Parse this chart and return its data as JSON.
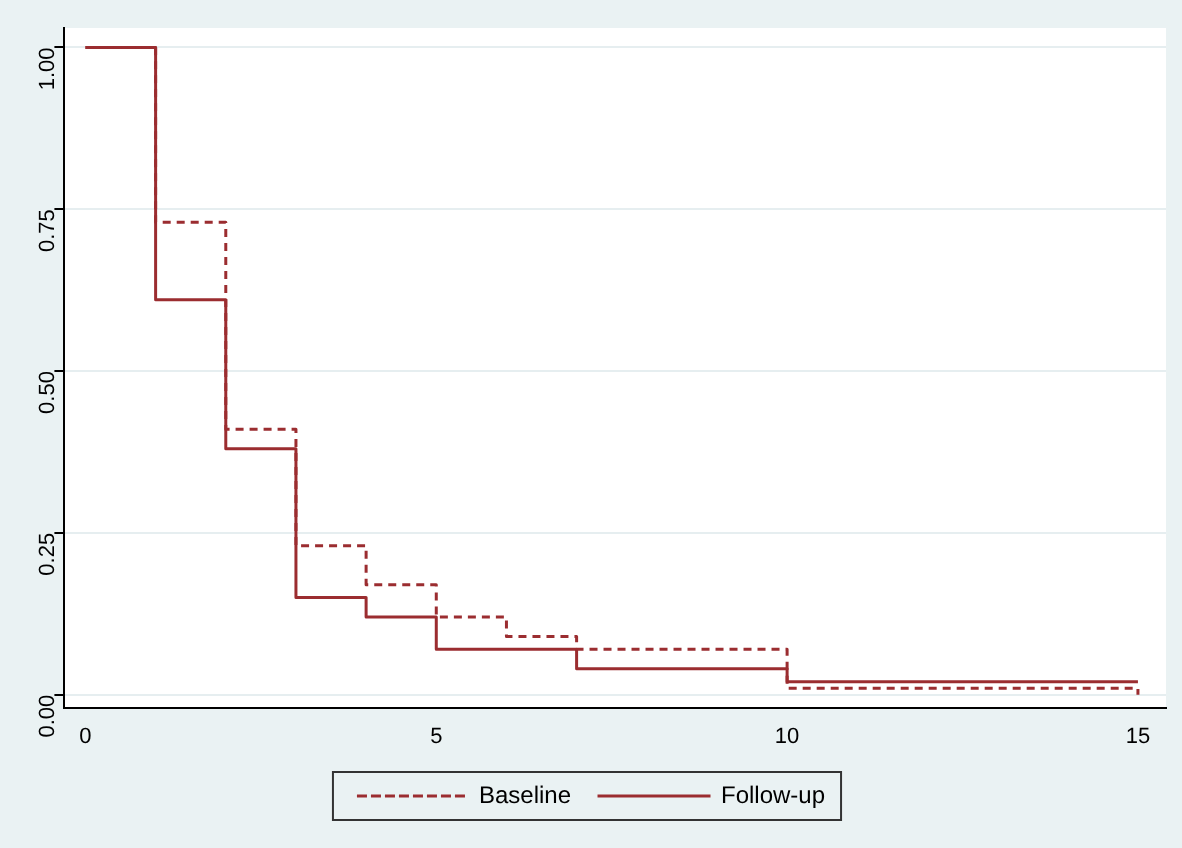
{
  "chart_data": {
    "type": "step",
    "xlim": [
      -0.3,
      15.4
    ],
    "xticks": [
      0,
      5,
      10,
      15
    ],
    "ylim": [
      -0.02,
      1.03
    ],
    "yticks": [
      {
        "value": 0,
        "label": "0.00"
      },
      {
        "value": 0.25,
        "label": "0.25"
      },
      {
        "value": 0.5,
        "label": "0.50"
      },
      {
        "value": 0.75,
        "label": "0.75"
      },
      {
        "value": 1,
        "label": "1.00"
      }
    ],
    "grid": "y",
    "legend": "bottom",
    "marker": "none",
    "series": [
      {
        "name": "Baseline",
        "color": "#9b2d30",
        "line_style": "dashed",
        "x": [
          0,
          1,
          2,
          3,
          4,
          5,
          6,
          7,
          10,
          15
        ],
        "values": [
          1,
          0.73,
          0.41,
          0.23,
          0.17,
          0.12,
          0.09,
          0.07,
          0.01,
          0
        ]
      },
      {
        "name": "Follow-up",
        "color": "#9b2d30",
        "line_style": "solid",
        "x": [
          0,
          1,
          2,
          3,
          4,
          5,
          7,
          10,
          15
        ],
        "values": [
          1,
          0.61,
          0.38,
          0.15,
          0.12,
          0.07,
          0.04,
          0.02,
          0.02
        ]
      }
    ]
  }
}
